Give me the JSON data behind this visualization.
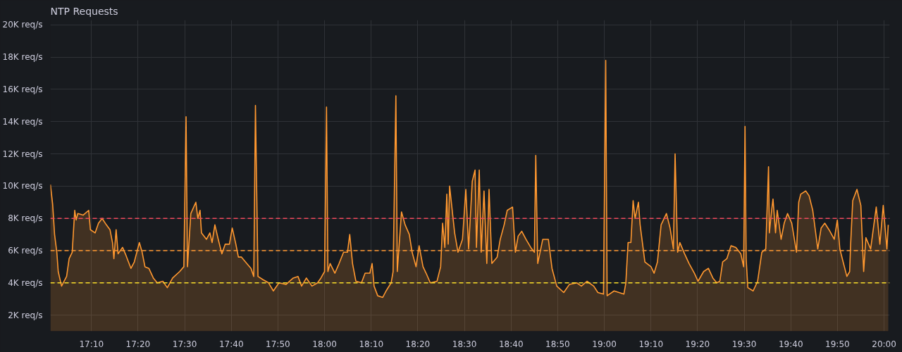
{
  "chart_data": {
    "type": "area",
    "title": "NTP Requests",
    "xlim": [
      17.02,
      20.02
    ],
    "ylim": [
      1000,
      20300
    ],
    "xticks": [
      {
        "value": 17.1667,
        "label": "17:10"
      },
      {
        "value": 17.3333,
        "label": "17:20"
      },
      {
        "value": 17.5,
        "label": "17:30"
      },
      {
        "value": 17.6667,
        "label": "17:40"
      },
      {
        "value": 17.8333,
        "label": "17:50"
      },
      {
        "value": 18.0,
        "label": "18:00"
      },
      {
        "value": 18.1667,
        "label": "18:10"
      },
      {
        "value": 18.3333,
        "label": "18:20"
      },
      {
        "value": 18.5,
        "label": "18:30"
      },
      {
        "value": 18.6667,
        "label": "18:40"
      },
      {
        "value": 18.8333,
        "label": "18:50"
      },
      {
        "value": 19.0,
        "label": "19:00"
      },
      {
        "value": 19.1667,
        "label": "19:10"
      },
      {
        "value": 19.3333,
        "label": "19:20"
      },
      {
        "value": 19.5,
        "label": "19:30"
      },
      {
        "value": 19.6667,
        "label": "19:40"
      },
      {
        "value": 19.8333,
        "label": "19:50"
      },
      {
        "value": 20.0,
        "label": "20:00"
      }
    ],
    "yticks": [
      {
        "value": 2000,
        "label": "2K req/s"
      },
      {
        "value": 4000,
        "label": "4K req/s"
      },
      {
        "value": 6000,
        "label": "6K req/s"
      },
      {
        "value": 8000,
        "label": "8K req/s"
      },
      {
        "value": 10000,
        "label": "10K req/s"
      },
      {
        "value": 12000,
        "label": "12K req/s"
      },
      {
        "value": 14000,
        "label": "14K req/s"
      },
      {
        "value": 16000,
        "label": "16K req/s"
      },
      {
        "value": 18000,
        "label": "18K req/s"
      },
      {
        "value": 20000,
        "label": "20K req/s"
      }
    ],
    "grid": true,
    "ref_lines": [
      {
        "axis": "y",
        "value": 4000,
        "color": "#fade2a",
        "line_style": "dashed"
      },
      {
        "axis": "y",
        "value": 6000,
        "color": "#ff9830",
        "line_style": "dashed"
      },
      {
        "axis": "y",
        "value": 8000,
        "color": "#f2495c",
        "line_style": "dashed"
      }
    ],
    "series": [
      {
        "color": "#ff9830",
        "x": [
          17.02,
          17.028,
          17.035,
          17.043,
          17.048,
          17.06,
          17.078,
          17.087,
          17.098,
          17.107,
          17.112,
          17.118,
          17.137,
          17.157,
          17.163,
          17.18,
          17.192,
          17.205,
          17.22,
          17.233,
          17.242,
          17.247,
          17.255,
          17.262,
          17.278,
          17.288,
          17.308,
          17.32,
          17.338,
          17.348,
          17.358,
          17.372,
          17.388,
          17.402,
          17.422,
          17.438,
          17.457,
          17.482,
          17.497,
          17.505,
          17.51,
          17.522,
          17.54,
          17.547,
          17.555,
          17.56,
          17.578,
          17.59,
          17.598,
          17.608,
          17.62,
          17.633,
          17.645,
          17.66,
          17.67,
          17.683,
          17.692,
          17.703,
          17.722,
          17.737,
          17.747,
          17.753,
          17.762,
          17.78,
          17.8,
          17.817,
          17.837,
          17.862,
          17.888,
          17.905,
          17.918,
          17.935,
          17.955,
          17.975,
          17.987,
          18.0,
          18.007,
          18.012,
          18.02,
          18.037,
          18.052,
          18.068,
          18.082,
          18.09,
          18.1,
          18.112,
          18.132,
          18.145,
          18.162,
          18.17,
          18.177,
          18.19,
          18.208,
          18.22,
          18.238,
          18.245,
          18.255,
          18.26,
          18.275,
          18.288,
          18.303,
          18.313,
          18.327,
          18.338,
          18.352,
          18.363,
          18.378,
          18.402,
          18.415,
          18.422,
          18.43,
          18.437,
          18.442,
          18.447,
          18.465,
          18.477,
          18.493,
          18.505,
          18.515,
          18.528,
          18.538,
          18.543,
          18.553,
          18.56,
          18.57,
          18.58,
          18.588,
          18.598,
          18.617,
          18.628,
          18.642,
          18.653,
          18.672,
          18.682,
          18.692,
          18.705,
          18.72,
          18.737,
          18.75,
          18.755,
          18.762,
          18.78,
          18.8,
          18.813,
          18.83,
          18.855,
          18.875,
          18.902,
          18.918,
          18.938,
          18.962,
          18.977,
          18.997,
          19.005,
          19.01,
          19.035,
          19.07,
          19.077,
          19.085,
          19.095,
          19.103,
          19.11,
          19.122,
          19.128,
          19.145,
          19.167,
          19.178,
          19.19,
          19.203,
          19.222,
          19.235,
          19.247,
          19.253,
          19.262,
          19.27,
          19.287,
          19.303,
          19.322,
          19.335,
          19.355,
          19.372,
          19.388,
          19.402,
          19.413,
          19.423,
          19.438,
          19.453,
          19.47,
          19.488,
          19.498,
          19.503,
          19.507,
          19.513,
          19.532,
          19.548,
          19.563,
          19.577,
          19.587,
          19.59,
          19.598,
          19.603,
          19.612,
          19.618,
          19.632,
          19.643,
          19.655,
          19.67,
          19.687,
          19.695,
          19.702,
          19.72,
          19.732,
          19.745,
          19.763,
          19.775,
          19.788,
          19.803,
          19.822,
          19.833,
          19.842,
          19.855,
          19.867,
          19.877,
          19.88,
          19.888,
          19.903,
          19.917,
          19.927,
          19.935,
          19.952,
          19.972,
          19.985,
          19.997,
          20.01,
          20.015
        ],
        "values": [
          10100,
          8900,
          7000,
          5900,
          4700,
          3800,
          4400,
          5500,
          5900,
          8500,
          7900,
          8300,
          8200,
          8500,
          7300,
          7100,
          7700,
          8000,
          7600,
          7300,
          6500,
          5500,
          7300,
          5800,
          6200,
          5800,
          4900,
          5300,
          6500,
          5900,
          5000,
          4900,
          4300,
          4000,
          4100,
          3700,
          4300,
          4700,
          5000,
          14300,
          5000,
          8300,
          9000,
          8000,
          8500,
          7100,
          6700,
          7100,
          6500,
          7600,
          6700,
          5800,
          6400,
          6400,
          7400,
          6400,
          5600,
          5600,
          5200,
          4900,
          4400,
          15000,
          4400,
          4200,
          4000,
          3500,
          4000,
          3900,
          4300,
          4400,
          3800,
          4300,
          3800,
          4000,
          4300,
          4700,
          14900,
          4700,
          5200,
          4600,
          5200,
          5900,
          5900,
          7000,
          5200,
          4100,
          4000,
          4600,
          4600,
          5200,
          3800,
          3200,
          3100,
          3500,
          4000,
          4700,
          15600,
          4700,
          8400,
          7600,
          7000,
          5900,
          5000,
          6300,
          5000,
          4600,
          4000,
          4100,
          5000,
          7700,
          6200,
          9500,
          6400,
          10000,
          7100,
          5900,
          6700,
          9800,
          6100,
          10300,
          11000,
          6200,
          11000,
          5900,
          9700,
          5200,
          9800,
          5200,
          5600,
          6700,
          7600,
          8500,
          8700,
          5900,
          6900,
          7200,
          6700,
          6200,
          5900,
          11900,
          5200,
          6700,
          6700,
          4900,
          3800,
          3400,
          3900,
          4000,
          3800,
          4100,
          3800,
          3400,
          3300,
          17800,
          3200,
          3500,
          3300,
          4000,
          6500,
          6500,
          9100,
          8000,
          9000,
          7600,
          5300,
          5000,
          4600,
          5300,
          7600,
          8300,
          7400,
          6100,
          12000,
          5900,
          6500,
          5800,
          5200,
          4600,
          4100,
          4700,
          4900,
          4300,
          4000,
          4100,
          5300,
          5500,
          6300,
          6200,
          5800,
          5000,
          13700,
          5500,
          3700,
          3500,
          4100,
          5900,
          6100,
          11200,
          7100,
          8500,
          9200,
          7100,
          8500,
          6700,
          7700,
          8300,
          7700,
          5900,
          9000,
          9500,
          9700,
          9400,
          8500,
          6100,
          7400,
          7700,
          7300,
          6700,
          7900,
          6100,
          5200,
          4400,
          4700,
          6200,
          9100,
          9800,
          8800,
          4700,
          6800,
          6100,
          8700,
          6400,
          8800,
          6100,
          7600
        ]
      }
    ]
  }
}
